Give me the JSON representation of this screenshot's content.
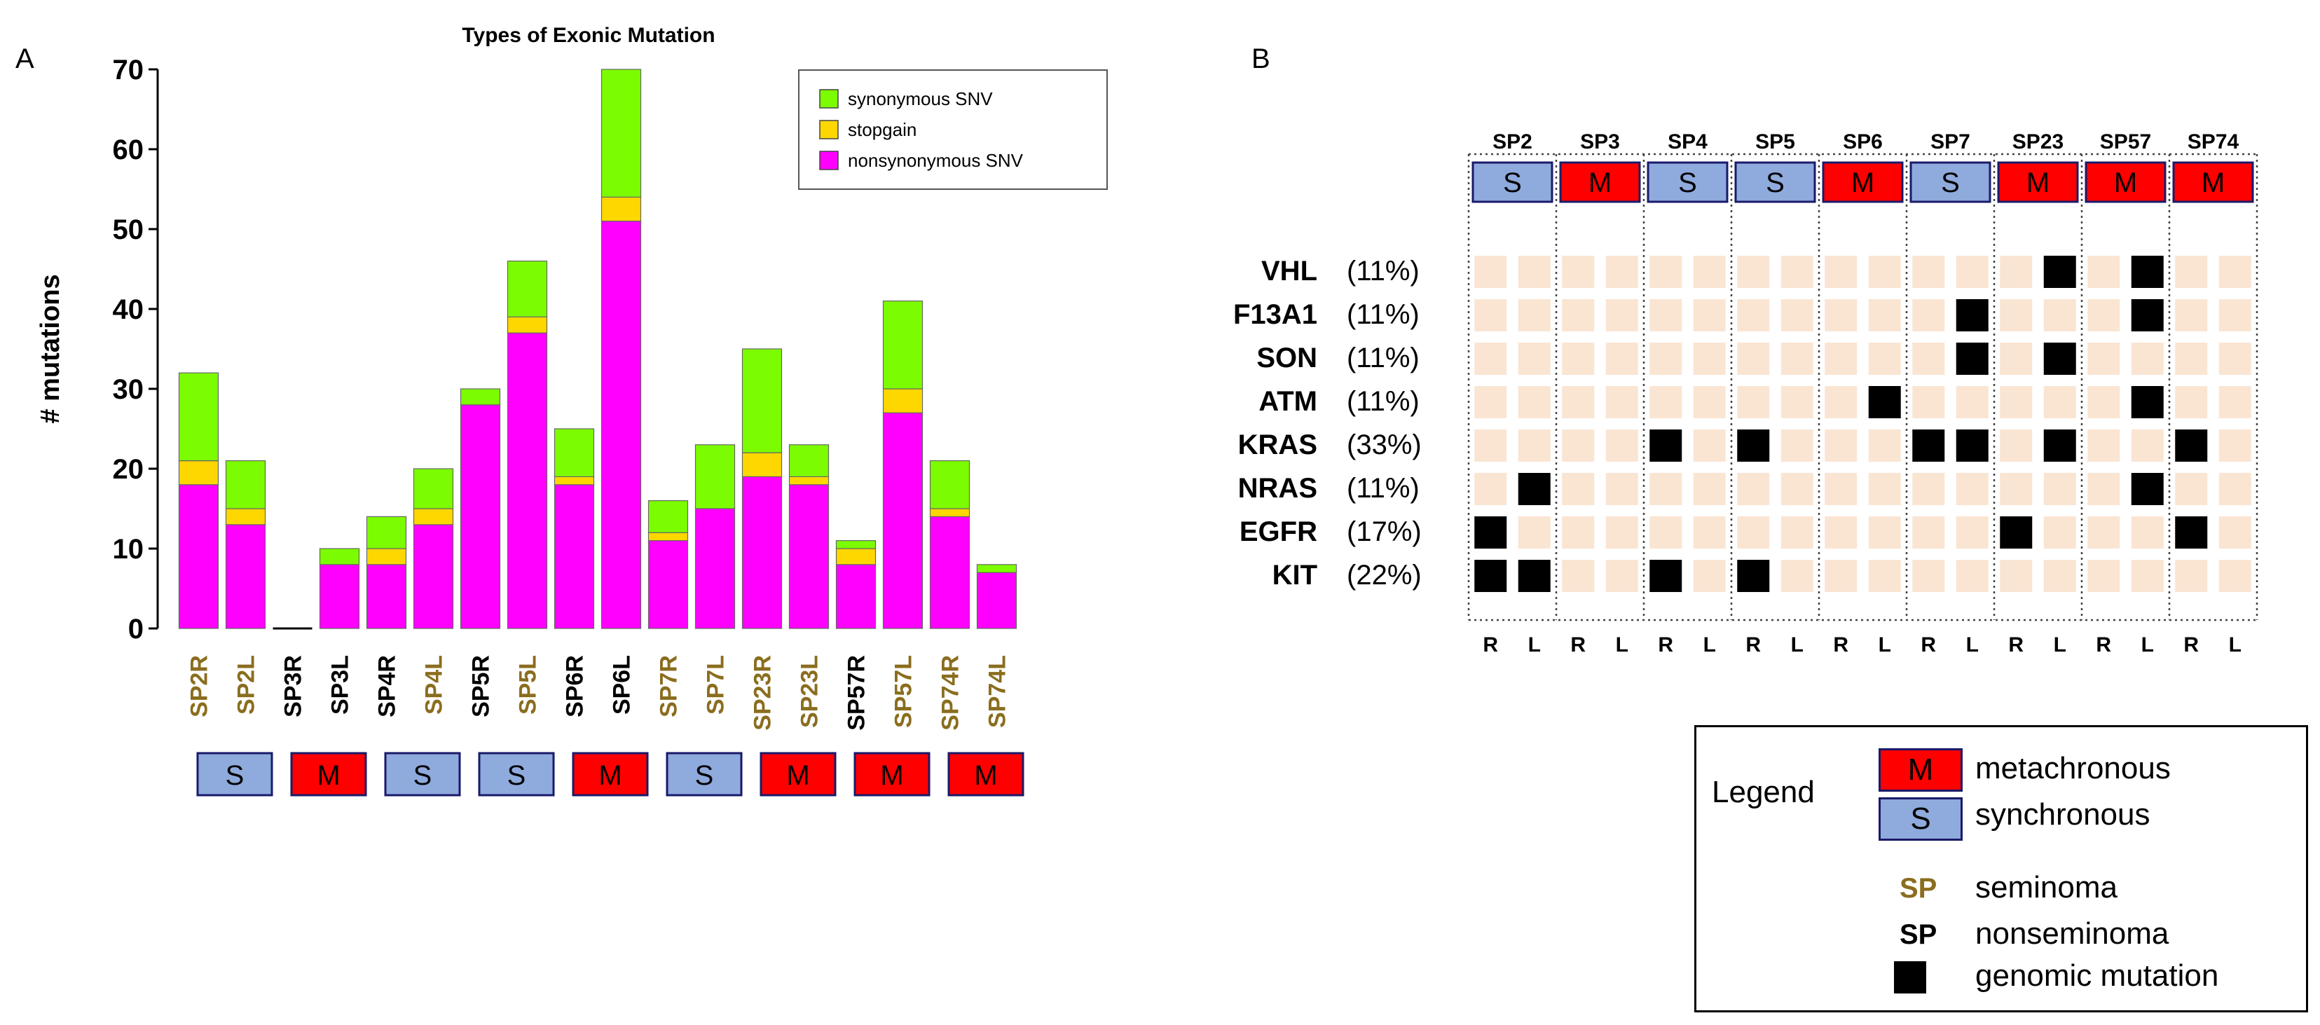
{
  "panel_labels": {
    "a": "A",
    "b": "B"
  },
  "colors": {
    "synonymous": "#7cfc00",
    "stopgain": "#ffd700",
    "nonsynonymous": "#ff00ff",
    "seminoma": "#8a6d1e",
    "nonseminoma": "#000000",
    "metachronous": "#ff0000",
    "synchronous": "#8faadc",
    "cell_empty": "#fae5d3",
    "cell_mutation": "#000000"
  },
  "chart_data": [
    {
      "type": "bar",
      "stacked": true,
      "title": "Types of Exonic Mutation",
      "ylabel": "# mutations",
      "xlabel": "",
      "ylim": [
        0,
        70
      ],
      "yticks": [
        0,
        10,
        20,
        30,
        40,
        50,
        60,
        70
      ],
      "legend_position": "top-right",
      "categories": [
        "SP2R",
        "SP2L",
        "SP3R",
        "SP3L",
        "SP4R",
        "SP4L",
        "SP5R",
        "SP5L",
        "SP6R",
        "SP6L",
        "SP7R",
        "SP7L",
        "SP23R",
        "SP23L",
        "SP57R",
        "SP57L",
        "SP74R",
        "SP74L"
      ],
      "category_types": [
        "seminoma",
        "seminoma",
        "nonseminoma",
        "nonseminoma",
        "nonseminoma",
        "seminoma",
        "nonseminoma",
        "seminoma",
        "nonseminoma",
        "nonseminoma",
        "seminoma",
        "seminoma",
        "seminoma",
        "seminoma",
        "nonseminoma",
        "seminoma",
        "seminoma",
        "seminoma"
      ],
      "series": [
        {
          "name": "nonsynonymous SNV",
          "values": [
            18,
            13,
            0,
            8,
            8,
            13,
            28,
            37,
            18,
            51,
            11,
            15,
            19,
            18,
            8,
            27,
            14,
            7
          ]
        },
        {
          "name": "stopgain",
          "values": [
            3,
            2,
            0,
            0,
            2,
            2,
            0,
            2,
            1,
            3,
            1,
            0,
            3,
            1,
            2,
            3,
            1,
            0
          ]
        },
        {
          "name": "synonymous SNV",
          "values": [
            11,
            6,
            0,
            2,
            4,
            5,
            2,
            7,
            6,
            16,
            4,
            8,
            13,
            4,
            1,
            11,
            6,
            1
          ]
        }
      ],
      "legend_order": [
        "synonymous SNV",
        "stopgain",
        "nonsynonymous SNV"
      ],
      "patient_groups": [
        {
          "label": "S",
          "type": "synchronous"
        },
        {
          "label": "M",
          "type": "metachronous"
        },
        {
          "label": "S",
          "type": "synchronous"
        },
        {
          "label": "S",
          "type": "synchronous"
        },
        {
          "label": "M",
          "type": "metachronous"
        },
        {
          "label": "S",
          "type": "synchronous"
        },
        {
          "label": "M",
          "type": "metachronous"
        },
        {
          "label": "M",
          "type": "metachronous"
        },
        {
          "label": "M",
          "type": "metachronous"
        }
      ]
    },
    {
      "type": "heatmap",
      "patients": [
        {
          "name": "SP2",
          "label": "S",
          "type": "synchronous"
        },
        {
          "name": "SP3",
          "label": "M",
          "type": "metachronous"
        },
        {
          "name": "SP4",
          "label": "S",
          "type": "synchronous"
        },
        {
          "name": "SP5",
          "label": "S",
          "type": "synchronous"
        },
        {
          "name": "SP6",
          "label": "M",
          "type": "metachronous"
        },
        {
          "name": "SP7",
          "label": "S",
          "type": "synchronous"
        },
        {
          "name": "SP23",
          "label": "M",
          "type": "metachronous"
        },
        {
          "name": "SP57",
          "label": "M",
          "type": "metachronous"
        },
        {
          "name": "SP74",
          "label": "M",
          "type": "metachronous"
        }
      ],
      "columns": [
        "R",
        "L",
        "R",
        "L",
        "R",
        "L",
        "R",
        "L",
        "R",
        "L",
        "R",
        "L",
        "R",
        "L",
        "R",
        "L",
        "R",
        "L"
      ],
      "genes": [
        {
          "gene": "VHL",
          "pct": "(11%)",
          "mutated": [
            0,
            0,
            0,
            0,
            0,
            0,
            0,
            0,
            0,
            0,
            0,
            0,
            0,
            1,
            0,
            1,
            0,
            0
          ]
        },
        {
          "gene": "F13A1",
          "pct": "(11%)",
          "mutated": [
            0,
            0,
            0,
            0,
            0,
            0,
            0,
            0,
            0,
            0,
            0,
            1,
            0,
            0,
            0,
            1,
            0,
            0
          ]
        },
        {
          "gene": "SON",
          "pct": "(11%)",
          "mutated": [
            0,
            0,
            0,
            0,
            0,
            0,
            0,
            0,
            0,
            0,
            0,
            1,
            0,
            1,
            0,
            0,
            0,
            0
          ]
        },
        {
          "gene": "ATM",
          "pct": "(11%)",
          "mutated": [
            0,
            0,
            0,
            0,
            0,
            0,
            0,
            0,
            0,
            1,
            0,
            0,
            0,
            0,
            0,
            1,
            0,
            0
          ]
        },
        {
          "gene": "KRAS",
          "pct": "(33%)",
          "mutated": [
            0,
            0,
            0,
            0,
            1,
            0,
            1,
            0,
            0,
            0,
            1,
            1,
            0,
            1,
            0,
            0,
            1,
            0
          ]
        },
        {
          "gene": "NRAS",
          "pct": "(11%)",
          "mutated": [
            0,
            1,
            0,
            0,
            0,
            0,
            0,
            0,
            0,
            0,
            0,
            0,
            0,
            0,
            0,
            1,
            0,
            0
          ]
        },
        {
          "gene": "EGFR",
          "pct": "(17%)",
          "mutated": [
            1,
            0,
            0,
            0,
            0,
            0,
            0,
            0,
            0,
            0,
            0,
            0,
            1,
            0,
            0,
            0,
            1,
            0
          ]
        },
        {
          "gene": "KIT",
          "pct": "(22%)",
          "mutated": [
            1,
            1,
            0,
            0,
            1,
            0,
            1,
            0,
            0,
            0,
            0,
            0,
            0,
            0,
            0,
            0,
            0,
            0
          ]
        }
      ]
    }
  ],
  "legend": {
    "title": "Legend",
    "items": [
      {
        "key": "M",
        "text": "metachronous"
      },
      {
        "key": "S",
        "text": "synchronous"
      },
      {
        "key": "SP",
        "text": "seminoma"
      },
      {
        "key": "SP",
        "text": "nonseminoma"
      },
      {
        "key": "",
        "text": "genomic mutation"
      }
    ]
  }
}
